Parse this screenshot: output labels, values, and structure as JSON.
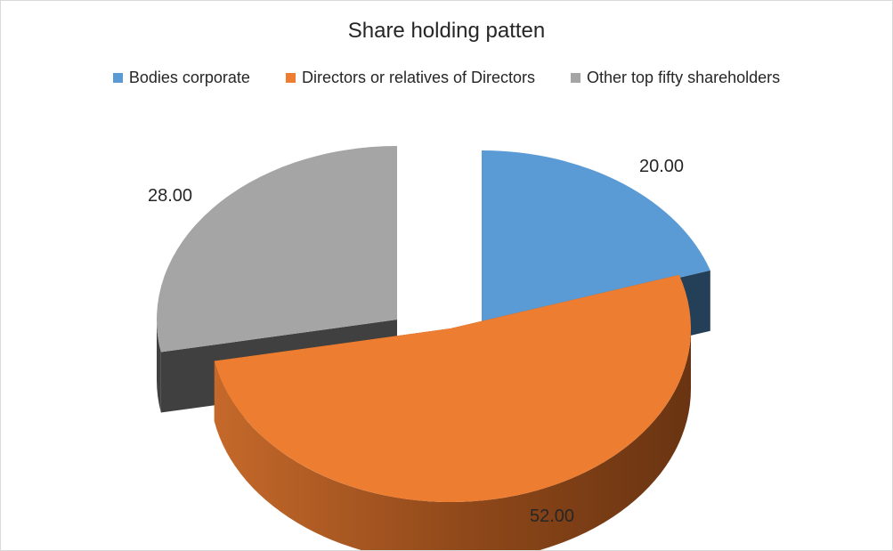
{
  "chart_data": {
    "type": "pie",
    "title": "Share holding patten",
    "legend_position": "top",
    "categories": [
      "Bodies corporate",
      "Directors or relatives of Directors",
      "Other top fifty shareholders"
    ],
    "values": [
      20.0,
      52.0,
      28.0
    ],
    "data_labels": [
      "20.00",
      "52.00",
      "28.00"
    ],
    "colors": [
      "#5b9bd5",
      "#ed7d31",
      "#a5a5a5"
    ],
    "side_colors": [
      "#243f58",
      "#8a4418",
      "#404040"
    ],
    "exploded": true
  }
}
